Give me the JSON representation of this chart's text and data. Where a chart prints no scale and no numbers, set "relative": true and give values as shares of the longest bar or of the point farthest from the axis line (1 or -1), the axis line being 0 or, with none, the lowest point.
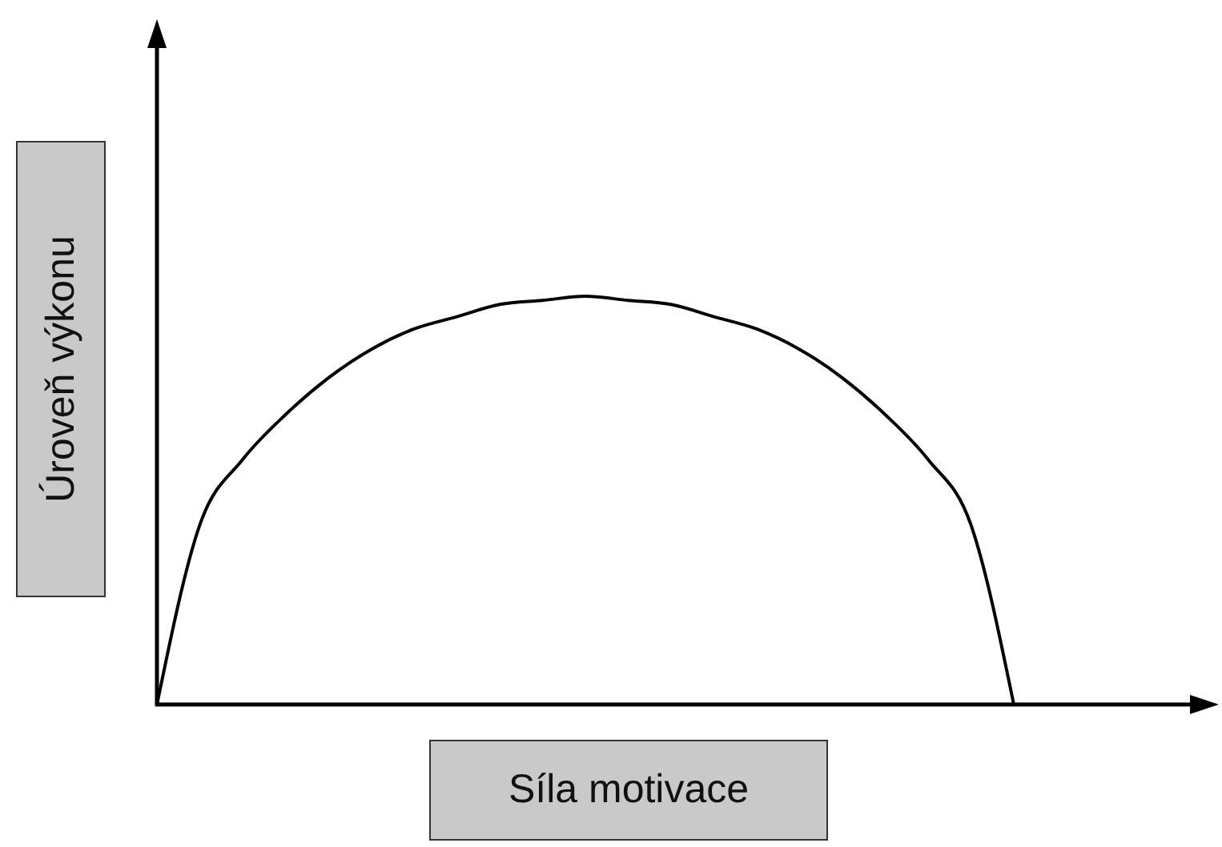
{
  "chart_data": {
    "type": "line",
    "relative": true,
    "xlabel": "Síla motivace",
    "ylabel": "Úroveň výkonu",
    "categories": [
      null,
      null,
      null,
      null,
      null,
      null,
      null,
      null,
      null,
      null,
      null,
      null,
      null,
      null,
      null,
      null,
      null,
      null,
      null,
      null,
      null,
      null,
      null,
      null,
      null
    ],
    "series": [
      {
        "color": "#000000",
        "values": [
          0,
          0.44,
          0.6,
          0.71,
          0.8,
          0.87,
          0.92,
          0.95,
          0.98,
          0.99,
          1,
          0.99,
          0.98,
          0.95,
          0.92,
          0.87,
          0.8,
          0.71,
          0.6,
          0.44,
          0,
          null,
          null,
          null,
          null
        ]
      }
    ]
  }
}
